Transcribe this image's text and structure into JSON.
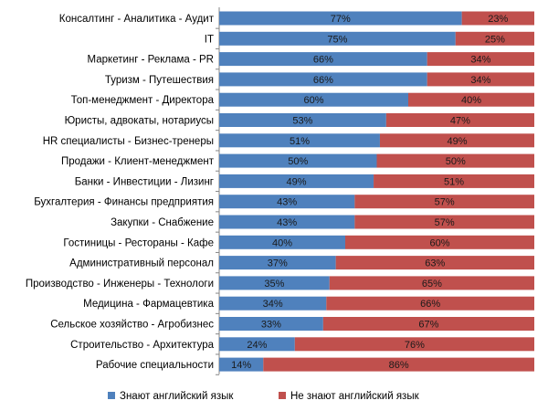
{
  "chart_data": {
    "type": "bar",
    "orientation": "horizontal",
    "stacked": true,
    "categories": [
      "Консалтинг - Аналитика - Аудит",
      "IT",
      "Маркетинг - Реклама - PR",
      "Туризм - Путешествия",
      "Топ-менеджмент - Директора",
      "Юристы, адвокаты, нотариусы",
      "HR специалисты - Бизнес-тренеры",
      "Продажи - Клиент-менеджмент",
      "Банки - Инвестиции - Лизинг",
      "Бухгалтерия - Финансы предприятия",
      "Закупки - Снабжение",
      "Гостиницы - Рестораны - Кафе",
      "Административный персонал",
      "Производство - Инженеры - Технологи",
      "Медицина - Фармацевтика",
      "Сельское хозяйство - Агробизнес",
      "Строительство - Архитектура",
      "Рабочие специальности"
    ],
    "series": [
      {
        "name": "Знают английский язык",
        "color": "#4f81bd",
        "values": [
          77,
          75,
          66,
          66,
          60,
          53,
          51,
          50,
          49,
          43,
          43,
          40,
          37,
          35,
          34,
          33,
          24,
          14
        ],
        "labels": [
          "77%",
          "75%",
          "66%",
          "66%",
          "60%",
          "53%",
          "51%",
          "50%",
          "49%",
          "43%",
          "43%",
          "40%",
          "37%",
          "35%",
          "34%",
          "33%",
          "24%",
          "14%"
        ]
      },
      {
        "name": "Не знают английский язык",
        "color": "#c0504d",
        "values": [
          23,
          25,
          34,
          34,
          40,
          47,
          49,
          50,
          51,
          57,
          57,
          60,
          63,
          65,
          66,
          67,
          76,
          86
        ],
        "labels": [
          "23%",
          "25%",
          "34%",
          "34%",
          "40%",
          "47%",
          "49%",
          "50%",
          "51%",
          "57%",
          "57%",
          "60%",
          "63%",
          "65%",
          "66%",
          "67%",
          "76%",
          "86%"
        ]
      }
    ],
    "xlim": [
      0,
      100
    ],
    "grid": false,
    "legend_position": "bottom"
  }
}
